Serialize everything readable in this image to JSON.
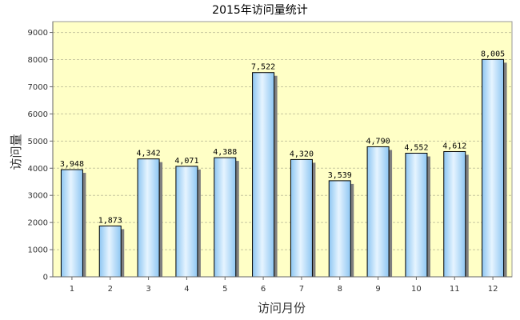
{
  "chart_data": {
    "type": "bar",
    "title": "2015年访问量统计",
    "xlabel": "访问月份",
    "ylabel": "访问量",
    "categories": [
      "1",
      "2",
      "3",
      "4",
      "5",
      "6",
      "7",
      "8",
      "9",
      "10",
      "11",
      "12"
    ],
    "values": [
      3948,
      1873,
      4342,
      4071,
      4388,
      7522,
      4320,
      3539,
      4790,
      4552,
      4612,
      8005
    ],
    "value_labels": [
      "3,948",
      "1,873",
      "4,342",
      "4,071",
      "4,388",
      "7,522",
      "4,320",
      "3,539",
      "4,790",
      "4,552",
      "4,612",
      "8,005"
    ],
    "yticks": [
      0,
      1000,
      2000,
      3000,
      4000,
      5000,
      6000,
      7000,
      8000,
      9000
    ],
    "ylim": [
      0,
      9400
    ],
    "grid": true,
    "colors": {
      "plot_background": "#ffffc6",
      "bar_light": "#e6f4ff",
      "bar_dark": "#8ec6f2",
      "bar_outline": "#000000",
      "shadow": "#7f7f7f",
      "grid": "#c8c8a0"
    }
  }
}
